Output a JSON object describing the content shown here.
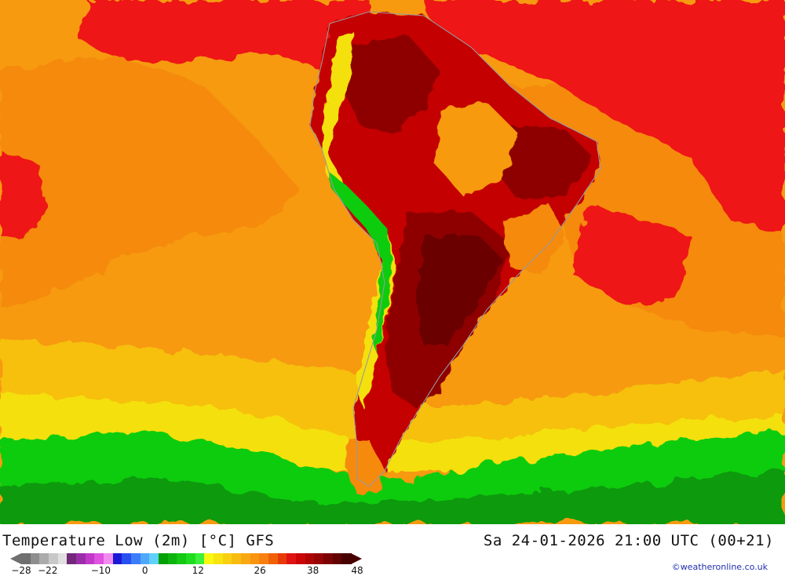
{
  "title": "Temperature Low (2m) [°C] GFS",
  "valid_time": "Sa 24-01-2026 21:00 UTC (00+21)",
  "credit": "©weatheronline.co.uk",
  "map": {
    "region": "South America",
    "field": "2m minimum temperature",
    "colors": {
      "ocean_orange": "#f79a10",
      "ocean_warm_orange": "#f58a0a",
      "red": "#ee1212",
      "dark_red": "#c40404",
      "maroon": "#8e0404",
      "deep_maroon": "#6a0202",
      "yellow": "#f4e010",
      "yellow_orange": "#f6c010",
      "green": "#0fcc0f",
      "dark_green": "#0a9a0a",
      "coast": "#9a9a9a"
    }
  },
  "legend": {
    "colors": [
      "#6f6f6f",
      "#8e8e8e",
      "#ababab",
      "#c8c8c8",
      "#e0e0e0",
      "#73287a",
      "#9a2ea8",
      "#c238c8",
      "#e052e0",
      "#f08cf0",
      "#1a1ad6",
      "#2850f0",
      "#3c7cf8",
      "#50a8fa",
      "#60d0fc",
      "#05a005",
      "#0cb40c",
      "#14c814",
      "#20dc20",
      "#3cf03c",
      "#f8f810",
      "#f8e410",
      "#f8d010",
      "#f8bc10",
      "#f8a810",
      "#f89410",
      "#f88010",
      "#f06008",
      "#e83a06",
      "#e01212",
      "#cc0606",
      "#b00404",
      "#960404",
      "#7c0303",
      "#620202",
      "#480101"
    ],
    "labels": [
      "-28",
      "-22",
      "-10",
      "0",
      "12",
      "26",
      "38",
      "48"
    ],
    "min": -28,
    "max": 48
  }
}
